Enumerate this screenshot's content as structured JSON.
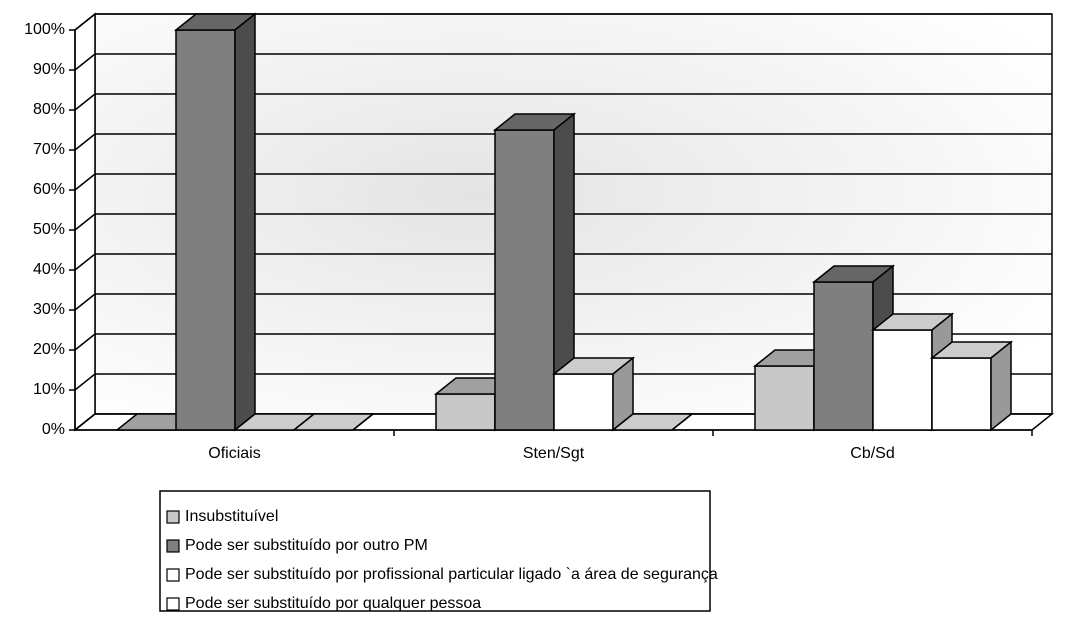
{
  "chart_data": {
    "type": "bar3d",
    "categories": [
      "Oficiais",
      "Sten/Sgt",
      "Cb/Sd"
    ],
    "series": [
      {
        "name": "Insubstituível",
        "color": "#c8c8c8",
        "values": [
          0,
          9,
          16
        ]
      },
      {
        "name": "Pode ser substituído por outro PM",
        "color": "#7f7f7f",
        "values": [
          100,
          75,
          37
        ]
      },
      {
        "name": "Pode ser substituído por profissional particular ligado `a área de segurança",
        "color": "#ffffff",
        "values": [
          0,
          14,
          25
        ]
      },
      {
        "name": "Pode ser substituído por qualquer pessoa",
        "color": "#ffffff",
        "values": [
          0,
          0,
          18
        ]
      }
    ],
    "ylim": [
      0,
      100
    ],
    "yticks": [
      {
        "value": 0,
        "label": "0%"
      },
      {
        "value": 10,
        "label": "10%"
      },
      {
        "value": 20,
        "label": "20%"
      },
      {
        "value": 30,
        "label": "30%"
      },
      {
        "value": 40,
        "label": "40%"
      },
      {
        "value": 50,
        "label": "50%"
      },
      {
        "value": 60,
        "label": "60%"
      },
      {
        "value": 70,
        "label": "70%"
      },
      {
        "value": 80,
        "label": "80%"
      },
      {
        "value": 90,
        "label": "90%"
      },
      {
        "value": 100,
        "label": "100%"
      }
    ],
    "grid": true
  }
}
